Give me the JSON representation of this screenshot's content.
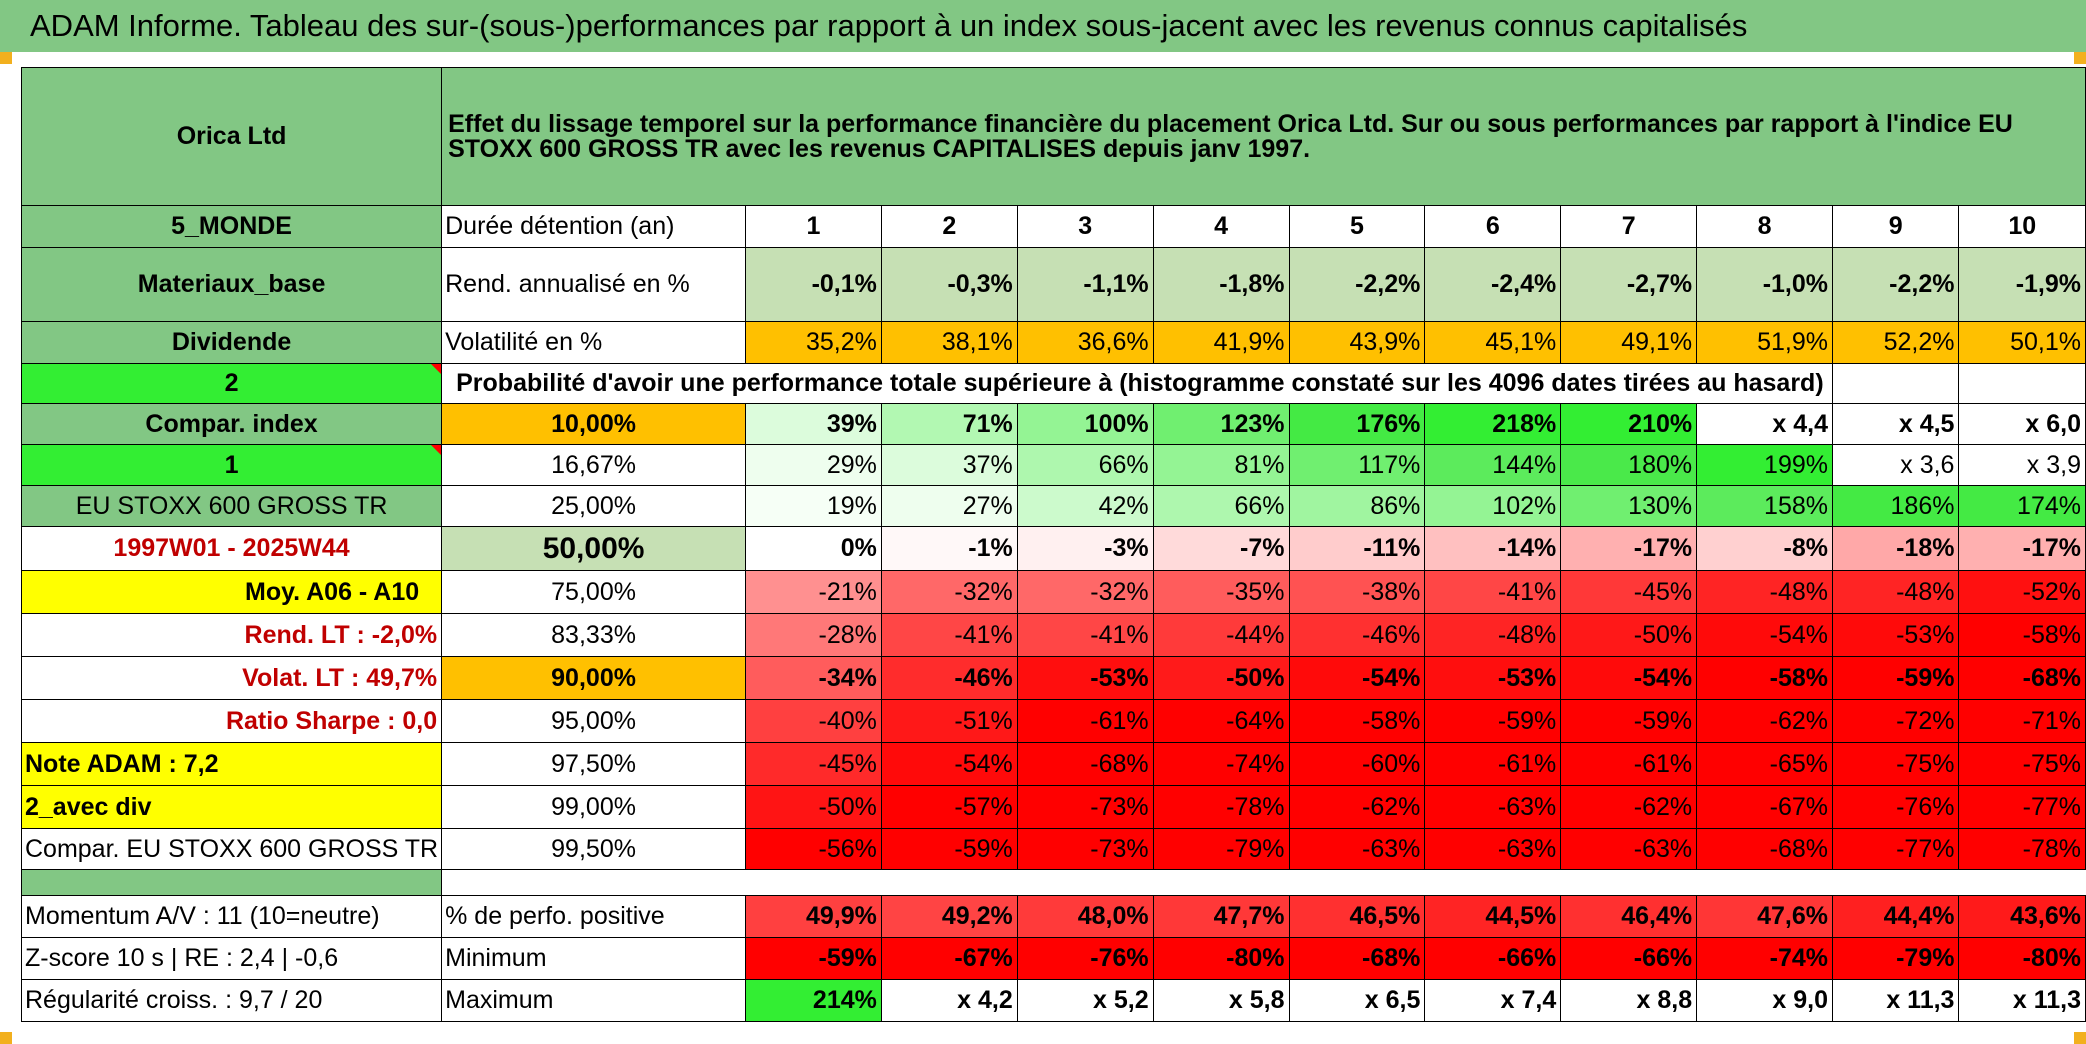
{
  "title": "ADAM Informe. Tableau des sur-(sous-)performances par rapport à un index sous-jacent avec les revenus connus capitalisés",
  "stock": "Orica Ltd",
  "description": "Effet du lissage temporel sur la performance financière du placement Orica Ltd. Sur ou sous performances par rapport à l'indice EU STOXX 600 GROSS TR avec les revenus CAPITALISES depuis janv 1997.",
  "left": {
    "region": "5_MONDE",
    "sector": "Materiaux_base",
    "type": "Dividende",
    "num2": "2",
    "compar_index": "Compar. index",
    "num1": "1",
    "index_name": "EU STOXX 600 GROSS TR",
    "period": "1997W01 - 2025W44",
    "moy": "Moy. A06 - A10",
    "rend_lt": "Rend. LT :    -2,0%",
    "volat_lt": "Volat. LT :   49,7%",
    "sharpe": "Ratio Sharpe :    0,0",
    "note": "Note ADAM : 7,2",
    "avec_div": "2_avec div",
    "compar_full": "Compar. EU STOXX 600 GROSS TR",
    "momentum": "Momentum A/V : 11 (10=neutre)",
    "zscore": "Z-score 10 s | RE : 2,4 | -0,6",
    "regularite": "Régularité croiss. : 9,7 / 20"
  },
  "labels": {
    "duree": "Durée détention (an)",
    "rend": "Rend. annualisé en %",
    "vol": "Volatilité en %",
    "proba": "Probabilité d'avoir une performance totale supérieure à (histogramme constaté sur les 4096 dates tirées au hasard)",
    "perf_pos": "% de perfo. positive",
    "minimum": "Minimum",
    "maximum": "Maximum"
  },
  "years": [
    "1",
    "2",
    "3",
    "4",
    "5",
    "6",
    "7",
    "8",
    "9",
    "10"
  ],
  "rend": [
    "-0,1%",
    "-0,3%",
    "-1,1%",
    "-1,8%",
    "-2,2%",
    "-2,4%",
    "-2,7%",
    "-1,0%",
    "-2,2%",
    "-1,9%"
  ],
  "vol": [
    "35,2%",
    "38,1%",
    "36,6%",
    "41,9%",
    "43,9%",
    "45,1%",
    "49,1%",
    "51,9%",
    "52,2%",
    "50,1%"
  ],
  "rows": [
    {
      "pct": "10,00%",
      "vals": [
        "39%",
        "71%",
        "100%",
        "123%",
        "176%",
        "218%",
        "210%",
        "x 4,4",
        "x 4,5",
        "x 6,0"
      ]
    },
    {
      "pct": "16,67%",
      "vals": [
        "29%",
        "37%",
        "66%",
        "81%",
        "117%",
        "144%",
        "180%",
        "199%",
        "x 3,6",
        "x 3,9"
      ]
    },
    {
      "pct": "25,00%",
      "vals": [
        "19%",
        "27%",
        "42%",
        "66%",
        "86%",
        "102%",
        "130%",
        "158%",
        "186%",
        "174%"
      ]
    },
    {
      "pct": "50,00%",
      "vals": [
        "0%",
        "-1%",
        "-3%",
        "-7%",
        "-11%",
        "-14%",
        "-17%",
        "-8%",
        "-18%",
        "-17%"
      ]
    },
    {
      "pct": "75,00%",
      "vals": [
        "-21%",
        "-32%",
        "-32%",
        "-35%",
        "-38%",
        "-41%",
        "-45%",
        "-48%",
        "-48%",
        "-52%"
      ]
    },
    {
      "pct": "83,33%",
      "vals": [
        "-28%",
        "-41%",
        "-41%",
        "-44%",
        "-46%",
        "-48%",
        "-50%",
        "-54%",
        "-53%",
        "-58%"
      ]
    },
    {
      "pct": "90,00%",
      "vals": [
        "-34%",
        "-46%",
        "-53%",
        "-50%",
        "-54%",
        "-53%",
        "-54%",
        "-58%",
        "-59%",
        "-68%"
      ]
    },
    {
      "pct": "95,00%",
      "vals": [
        "-40%",
        "-51%",
        "-61%",
        "-64%",
        "-58%",
        "-59%",
        "-59%",
        "-62%",
        "-72%",
        "-71%"
      ]
    },
    {
      "pct": "97,50%",
      "vals": [
        "-45%",
        "-54%",
        "-68%",
        "-74%",
        "-60%",
        "-61%",
        "-61%",
        "-65%",
        "-75%",
        "-75%"
      ]
    },
    {
      "pct": "99,00%",
      "vals": [
        "-50%",
        "-57%",
        "-73%",
        "-78%",
        "-62%",
        "-63%",
        "-62%",
        "-67%",
        "-76%",
        "-77%"
      ]
    },
    {
      "pct": "99,50%",
      "vals": [
        "-56%",
        "-59%",
        "-73%",
        "-79%",
        "-63%",
        "-63%",
        "-63%",
        "-68%",
        "-77%",
        "-78%"
      ]
    }
  ],
  "perf_pos": [
    "49,9%",
    "49,2%",
    "48,0%",
    "47,7%",
    "46,5%",
    "44,5%",
    "46,4%",
    "47,6%",
    "44,4%",
    "43,6%"
  ],
  "minimum": [
    "-59%",
    "-67%",
    "-76%",
    "-80%",
    "-68%",
    "-66%",
    "-66%",
    "-74%",
    "-79%",
    "-80%"
  ],
  "maximum": [
    "214%",
    "x 4,2",
    "x 5,2",
    "x 5,8",
    "x 6,5",
    "x 7,4",
    "x 8,8",
    "x 9,0",
    "x 11,3",
    "x 11,3"
  ],
  "colors": {
    "header_green": "#82c784",
    "light_green": "#c6e0b4",
    "orange": "#ffc000",
    "yellow": "#ffff00",
    "bright_green": "#33ee33",
    "red": "#ff0000",
    "label_red": "#c00000"
  },
  "row_colors": [
    [
      "#dcfcdc",
      "#b2f8b2",
      "#94f494",
      "#70ef70",
      "#44ea44",
      "#33ee33",
      "#33ee33",
      "#ffffff",
      "#ffffff",
      "#ffffff"
    ],
    [
      "#eefeee",
      "#dcfcdc",
      "#aef7ae",
      "#94f494",
      "#70ef70",
      "#5ceb5c",
      "#4ae94a",
      "#33ee33",
      "#ffffff",
      "#ffffff"
    ],
    [
      "#f6fff6",
      "#eefeee",
      "#ccfacc",
      "#aef7ae",
      "#a0f5a0",
      "#94f494",
      "#70ef70",
      "#5ceb5c",
      "#44ea44",
      "#44ea44"
    ],
    [
      "#ffffff",
      "#fff8f8",
      "#fff0f0",
      "#ffdada",
      "#ffcccc",
      "#ffc0c0",
      "#ffb0b0",
      "#ffd0d0",
      "#ffa8a8",
      "#ffb0b0"
    ],
    [
      "#ff9090",
      "#ff6868",
      "#ff6868",
      "#ff5c5c",
      "#ff5252",
      "#ff4646",
      "#ff3838",
      "#ff2424",
      "#ff2424",
      "#ff1010"
    ],
    [
      "#ff7878",
      "#ff4646",
      "#ff4646",
      "#ff3a3a",
      "#ff3030",
      "#ff2424",
      "#ff1818",
      "#ff0a0a",
      "#ff0a0a",
      "#ff0000"
    ],
    [
      "#ff5c5c",
      "#ff2c2c",
      "#ff0e0e",
      "#ff1a1a",
      "#ff0a0a",
      "#ff0e0e",
      "#ff0a0a",
      "#ff0000",
      "#ff0000",
      "#ff0000"
    ],
    [
      "#ff4040",
      "#ff1818",
      "#ff0000",
      "#ff0000",
      "#ff0000",
      "#ff0000",
      "#ff0000",
      "#ff0000",
      "#ff0000",
      "#ff0000"
    ],
    [
      "#ff2a2a",
      "#ff0a0a",
      "#ff0000",
      "#ff0000",
      "#ff0000",
      "#ff0000",
      "#ff0000",
      "#ff0000",
      "#ff0000",
      "#ff0000"
    ],
    [
      "#ff1414",
      "#ff0000",
      "#ff0000",
      "#ff0000",
      "#ff0000",
      "#ff0000",
      "#ff0000",
      "#ff0000",
      "#ff0000",
      "#ff0000"
    ],
    [
      "#ff0000",
      "#ff0000",
      "#ff0000",
      "#ff0000",
      "#ff0000",
      "#ff0000",
      "#ff0000",
      "#ff0000",
      "#ff0000",
      "#ff0000"
    ]
  ]
}
